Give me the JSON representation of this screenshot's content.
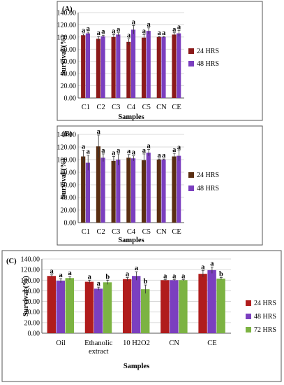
{
  "chart_data": [
    {
      "type": "bar",
      "panel": "(A)",
      "categories": [
        "C1",
        "C2",
        "C3",
        "C4",
        "C5",
        "CN",
        "CE"
      ],
      "xlabel": "Samples",
      "ylabel": "Survival (%)",
      "ylim": [
        0,
        140
      ],
      "yticks": [
        "0.00",
        "20.00",
        "40.00",
        "60.00",
        "80.00",
        "100.00",
        "120.00",
        "140.00"
      ],
      "legend_position": "right",
      "series": [
        {
          "name": "24 HRS",
          "color": "#8b1a1a",
          "values": [
            103,
            97,
            100,
            92,
            99,
            100,
            104
          ],
          "err": [
            2,
            4,
            4,
            5,
            5,
            1,
            3
          ],
          "sig": [
            "a",
            "a",
            "a",
            "a",
            "a",
            "a",
            "a"
          ]
        },
        {
          "name": "48 HRS",
          "color": "#7b3fbf",
          "values": [
            106,
            101,
            104,
            112,
            110,
            100,
            106
          ],
          "err": [
            2,
            2,
            3,
            7,
            5,
            1,
            5
          ],
          "sig": [
            "a",
            "a",
            "a",
            "a",
            "a",
            "a",
            "a"
          ]
        }
      ]
    },
    {
      "type": "bar",
      "panel": "(B)",
      "categories": [
        "C1",
        "C2",
        "C3",
        "C4",
        "C5",
        "CN",
        "CE"
      ],
      "xlabel": "Samples",
      "ylabel": "Survival (%)",
      "ylim": [
        0,
        140
      ],
      "yticks": [
        "0.00",
        "20.00",
        "40.00",
        "60.00",
        "80.00",
        "100.00",
        "120.00",
        "140.00"
      ],
      "legend_position": "right",
      "series": [
        {
          "name": "24 HRS",
          "color": "#5a2e12",
          "values": [
            105,
            121,
            98,
            103,
            99,
            100,
            105
          ],
          "err": [
            10,
            18,
            7,
            5,
            10,
            1,
            5
          ],
          "sig": [
            "a",
            "a",
            "a",
            "a",
            "a",
            "a",
            "a"
          ]
        },
        {
          "name": "48 HRS",
          "color": "#7b3fbf",
          "values": [
            95,
            103,
            100,
            102,
            111,
            100,
            106
          ],
          "err": [
            12,
            6,
            9,
            4,
            5,
            1,
            8
          ],
          "sig": [
            "a",
            "a",
            "a",
            "a",
            "a",
            "a",
            "a"
          ]
        }
      ]
    },
    {
      "type": "bar",
      "panel": "(C)",
      "categories": [
        "Oil",
        "Ethanolic extract",
        "10 H2O2",
        "CN",
        "CE"
      ],
      "xlabel": "Samples",
      "ylabel": "Survival (%)",
      "ylim": [
        0,
        140
      ],
      "yticks": [
        "0.00",
        "20.00",
        "40.00",
        "60.00",
        "80.00",
        "100.00",
        "120.00",
        "140.00"
      ],
      "legend_position": "right",
      "series": [
        {
          "name": "24 HRS",
          "color": "#b01c1c",
          "values": [
            108,
            97,
            102,
            100,
            112
          ],
          "err": [
            2,
            3,
            3,
            1,
            6
          ],
          "sig": [
            "a",
            "a",
            "a",
            "a",
            "a"
          ]
        },
        {
          "name": "48 HRS",
          "color": "#7b3fbf",
          "values": [
            99,
            84,
            108,
            100,
            119
          ],
          "err": [
            4,
            3,
            8,
            1,
            6
          ],
          "sig": [
            "a",
            "a",
            "a",
            "a",
            "a"
          ]
        },
        {
          "name": "72 HRS",
          "color": "#7cb342",
          "values": [
            104,
            96,
            83,
            100,
            103
          ],
          "err": [
            3,
            4,
            8,
            1,
            2
          ],
          "sig": [
            "a",
            "b",
            "b",
            "a",
            "b"
          ]
        }
      ]
    }
  ]
}
